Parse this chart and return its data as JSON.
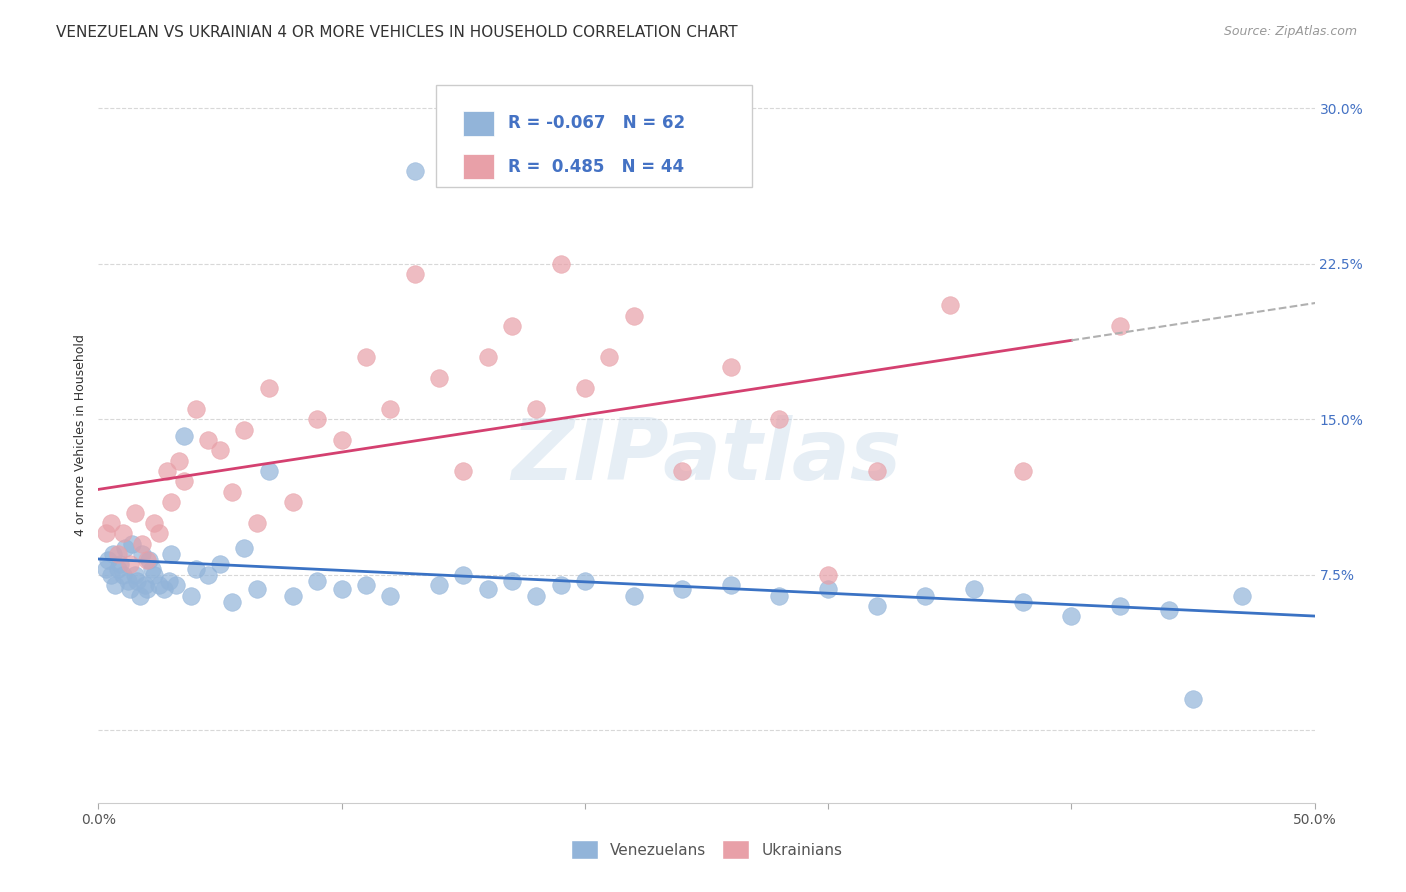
{
  "title": "VENEZUELAN VS UKRAINIAN 4 OR MORE VEHICLES IN HOUSEHOLD CORRELATION CHART",
  "source": "Source: ZipAtlas.com",
  "ylabel": "4 or more Vehicles in Household",
  "xlim": [
    0.0,
    50.0
  ],
  "ylim": [
    -3.5,
    32.0
  ],
  "yticks": [
    0.0,
    7.5,
    15.0,
    22.5,
    30.0
  ],
  "ytick_labels": [
    "",
    "7.5%",
    "15.0%",
    "22.5%",
    "30.0%"
  ],
  "xticks": [
    0.0,
    10.0,
    20.0,
    30.0,
    40.0,
    50.0
  ],
  "xtick_labels": [
    "0.0%",
    "",
    "",
    "",
    "",
    "50.0%"
  ],
  "watermark": "ZIPatlas",
  "color_venezuelan": "#92b4d9",
  "color_ukrainian": "#e8a0a8",
  "color_trend_venezuelan": "#3a72c4",
  "color_trend_ukrainian": "#d44070",
  "background_color": "#ffffff",
  "grid_color": "#d8d8d8",
  "venezuelan_x": [
    0.3,
    0.4,
    0.5,
    0.6,
    0.7,
    0.8,
    0.9,
    1.0,
    1.1,
    1.2,
    1.3,
    1.4,
    1.5,
    1.6,
    1.7,
    1.8,
    1.9,
    2.0,
    2.1,
    2.2,
    2.3,
    2.5,
    2.7,
    2.9,
    3.0,
    3.2,
    3.5,
    3.8,
    4.0,
    4.5,
    5.0,
    5.5,
    6.0,
    6.5,
    7.0,
    8.0,
    9.0,
    10.0,
    11.0,
    12.0,
    13.0,
    14.0,
    15.0,
    16.0,
    17.0,
    18.0,
    19.0,
    20.0,
    22.0,
    24.0,
    26.0,
    28.0,
    30.0,
    32.0,
    34.0,
    36.0,
    38.0,
    40.0,
    42.0,
    44.0,
    45.0,
    47.0
  ],
  "venezuelan_y": [
    7.8,
    8.2,
    7.5,
    8.5,
    7.0,
    7.8,
    8.0,
    7.5,
    8.8,
    7.2,
    6.8,
    9.0,
    7.5,
    7.2,
    6.5,
    8.5,
    7.0,
    6.8,
    8.2,
    7.8,
    7.5,
    7.0,
    6.8,
    7.2,
    8.5,
    7.0,
    14.2,
    6.5,
    7.8,
    7.5,
    8.0,
    6.2,
    8.8,
    6.8,
    12.5,
    6.5,
    7.2,
    6.8,
    7.0,
    6.5,
    27.0,
    7.0,
    7.5,
    6.8,
    7.2,
    6.5,
    7.0,
    7.2,
    6.5,
    6.8,
    7.0,
    6.5,
    6.8,
    6.0,
    6.5,
    6.8,
    6.2,
    5.5,
    6.0,
    5.8,
    1.5,
    6.5
  ],
  "ukrainian_x": [
    0.3,
    0.5,
    0.8,
    1.0,
    1.3,
    1.5,
    1.8,
    2.0,
    2.3,
    2.5,
    2.8,
    3.0,
    3.3,
    3.5,
    4.0,
    4.5,
    5.0,
    5.5,
    6.0,
    6.5,
    7.0,
    8.0,
    9.0,
    10.0,
    11.0,
    12.0,
    13.0,
    14.0,
    15.0,
    16.0,
    17.0,
    18.0,
    19.0,
    20.0,
    21.0,
    22.0,
    24.0,
    26.0,
    28.0,
    30.0,
    32.0,
    35.0,
    38.0,
    42.0
  ],
  "ukrainian_y": [
    9.5,
    10.0,
    8.5,
    9.5,
    8.0,
    10.5,
    9.0,
    8.2,
    10.0,
    9.5,
    12.5,
    11.0,
    13.0,
    12.0,
    15.5,
    14.0,
    13.5,
    11.5,
    14.5,
    10.0,
    16.5,
    11.0,
    15.0,
    14.0,
    18.0,
    15.5,
    22.0,
    17.0,
    12.5,
    18.0,
    19.5,
    15.5,
    22.5,
    16.5,
    18.0,
    20.0,
    12.5,
    17.5,
    15.0,
    7.5,
    12.5,
    20.5,
    12.5,
    19.5
  ],
  "title_fontsize": 11,
  "axis_label_fontsize": 9,
  "tick_fontsize": 10,
  "legend_fontsize": 11,
  "source_fontsize": 9
}
